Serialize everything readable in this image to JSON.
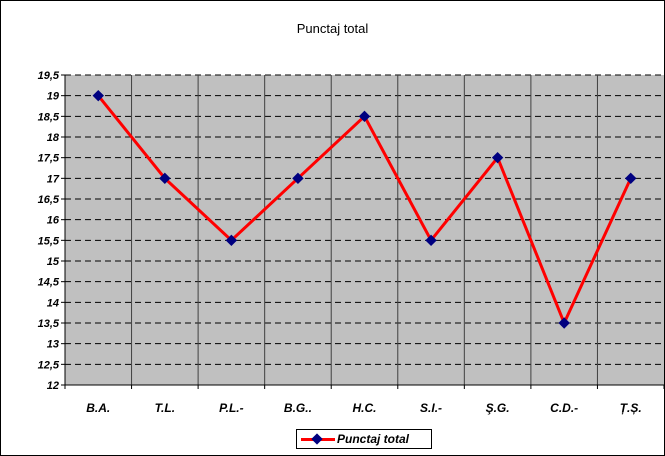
{
  "chart_data": {
    "type": "line",
    "title": "Punctaj total",
    "categories": [
      "B.A.",
      "T.L.",
      "P.L.-",
      "B.G..",
      "H.C.",
      "S.I.-",
      "Ş.G.",
      "C.D.-",
      "Ț.Ș."
    ],
    "series": [
      {
        "name": "Punctaj total",
        "values": [
          19,
          17,
          15.5,
          17,
          18.5,
          15.5,
          17.5,
          13.5,
          17
        ]
      }
    ],
    "ylim": [
      12,
      19.5
    ],
    "y_ticks": [
      12,
      12.5,
      13,
      13.5,
      14,
      14.5,
      15,
      15.5,
      16,
      16.5,
      17,
      17.5,
      18,
      18.5,
      19,
      19.5
    ],
    "y_tick_labels": [
      "12",
      "12,5",
      "13",
      "13,5",
      "14",
      "14,5",
      "15",
      "15,5",
      "16",
      "16,5",
      "17",
      "17,5",
      "18",
      "18,5",
      "19",
      "19,5"
    ],
    "xlabel": "",
    "ylabel": "",
    "grid": true,
    "legend_position": "bottom",
    "colors": {
      "line": "#ff0000",
      "marker": "#000080",
      "plot_background": "#c0c0c0",
      "gridline": "#000000"
    }
  }
}
